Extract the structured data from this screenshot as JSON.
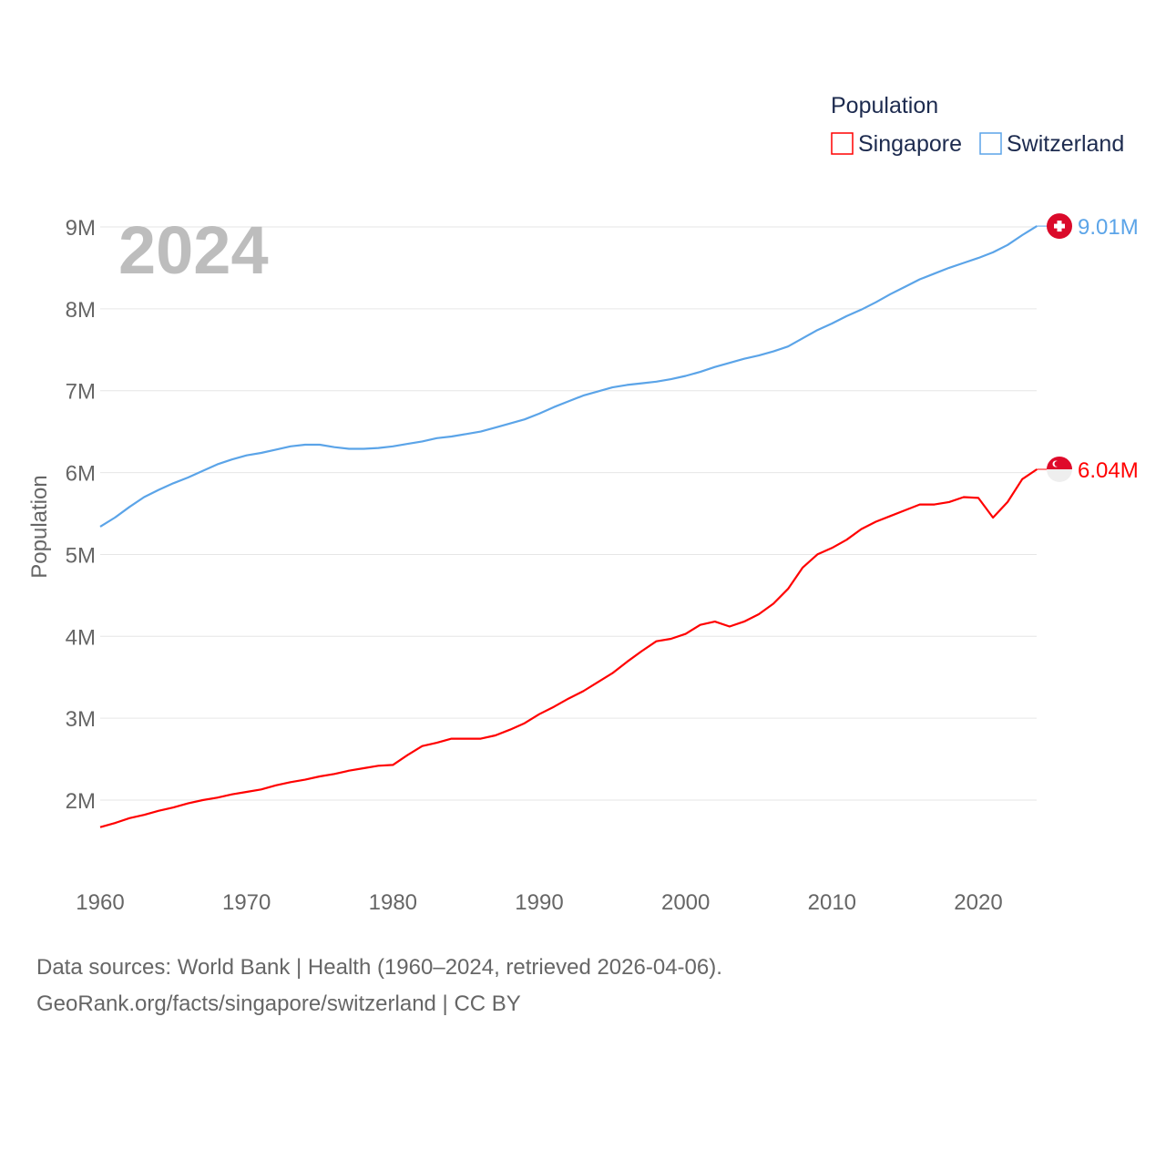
{
  "chart_data": {
    "type": "line",
    "title": "",
    "year_label": "2024",
    "xlabel": "",
    "ylabel": "Population",
    "xlim": [
      1960,
      2024
    ],
    "ylim": [
      1.1,
      9.0
    ],
    "x_ticks": [
      1960,
      1970,
      1980,
      1990,
      2000,
      2010,
      2020
    ],
    "x_tick_labels": [
      "1960",
      "1970",
      "1980",
      "1990",
      "2000",
      "2010",
      "2020"
    ],
    "y_ticks": [
      2,
      3,
      4,
      5,
      6,
      7,
      8,
      9
    ],
    "y_tick_labels": [
      "2M",
      "3M",
      "4M",
      "5M",
      "6M",
      "7M",
      "8M",
      "9M"
    ],
    "grid": true,
    "legend": {
      "title": "Population",
      "placement": "top-right"
    },
    "x": [
      1960,
      1961,
      1962,
      1963,
      1964,
      1965,
      1966,
      1967,
      1968,
      1969,
      1970,
      1971,
      1972,
      1973,
      1974,
      1975,
      1976,
      1977,
      1978,
      1979,
      1980,
      1981,
      1982,
      1983,
      1984,
      1985,
      1986,
      1987,
      1988,
      1989,
      1990,
      1991,
      1992,
      1993,
      1994,
      1995,
      1996,
      1997,
      1998,
      1999,
      2000,
      2001,
      2002,
      2003,
      2004,
      2005,
      2006,
      2007,
      2008,
      2009,
      2010,
      2011,
      2012,
      2013,
      2014,
      2015,
      2016,
      2017,
      2018,
      2019,
      2020,
      2021,
      2022,
      2023,
      2024
    ],
    "series": [
      {
        "name": "Singapore",
        "color": "#ff0000",
        "end_label": "6.04M",
        "unit": "millions",
        "values": [
          1.67,
          1.72,
          1.78,
          1.82,
          1.87,
          1.91,
          1.96,
          2.0,
          2.03,
          2.07,
          2.1,
          2.13,
          2.18,
          2.22,
          2.25,
          2.29,
          2.32,
          2.36,
          2.39,
          2.42,
          2.43,
          2.55,
          2.66,
          2.7,
          2.75,
          2.75,
          2.75,
          2.79,
          2.86,
          2.94,
          3.05,
          3.14,
          3.24,
          3.33,
          3.44,
          3.55,
          3.69,
          3.82,
          3.94,
          3.97,
          4.03,
          4.14,
          4.18,
          4.12,
          4.18,
          4.27,
          4.4,
          4.58,
          4.84,
          5.0,
          5.08,
          5.18,
          5.31,
          5.4,
          5.47,
          5.54,
          5.61,
          5.61,
          5.64,
          5.7,
          5.69,
          5.45,
          5.64,
          5.92,
          6.04
        ]
      },
      {
        "name": "Switzerland",
        "color": "#5ba4e8",
        "end_label": "9.01M",
        "unit": "millions",
        "values": [
          5.34,
          5.45,
          5.58,
          5.7,
          5.79,
          5.87,
          5.94,
          6.02,
          6.1,
          6.16,
          6.21,
          6.24,
          6.28,
          6.32,
          6.34,
          6.34,
          6.31,
          6.29,
          6.29,
          6.3,
          6.32,
          6.35,
          6.38,
          6.42,
          6.44,
          6.47,
          6.5,
          6.55,
          6.6,
          6.65,
          6.72,
          6.8,
          6.87,
          6.94,
          6.99,
          7.04,
          7.07,
          7.09,
          7.11,
          7.14,
          7.18,
          7.23,
          7.29,
          7.34,
          7.39,
          7.43,
          7.48,
          7.54,
          7.64,
          7.74,
          7.82,
          7.91,
          7.99,
          8.08,
          8.18,
          8.27,
          8.36,
          8.43,
          8.5,
          8.56,
          8.62,
          8.69,
          8.78,
          8.9,
          9.01
        ]
      }
    ]
  },
  "footer": {
    "line1": "Data sources: World Bank | Health (1960–2024, retrieved 2026-04-06).",
    "line2": "GeoRank.org/facts/singapore/switzerland | CC BY"
  }
}
